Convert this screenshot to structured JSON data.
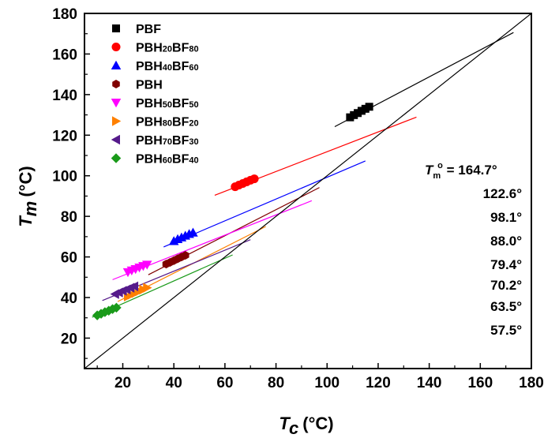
{
  "chart_data": {
    "type": "scatter",
    "title": "",
    "xlabel": {
      "symbol": "T",
      "sub": "c",
      "unit": "(°C)"
    },
    "ylabel": {
      "symbol": "T",
      "sub": "m",
      "unit": "(°C)"
    },
    "xlim": [
      5,
      180
    ],
    "ylim": [
      5,
      180
    ],
    "x_ticks": [
      20,
      40,
      60,
      80,
      100,
      120,
      140,
      160,
      180
    ],
    "y_ticks": [
      20,
      40,
      60,
      80,
      100,
      120,
      140,
      160,
      180
    ],
    "identity_line": {
      "from": [
        5,
        5
      ],
      "to": [
        180,
        180
      ],
      "color": "#000000"
    },
    "legend_position": "top-left",
    "series": [
      {
        "name": "PBF",
        "name_parts": [
          [
            "PBF",
            ""
          ]
        ],
        "marker": "square",
        "color": "#000000",
        "x": [
          109,
          110.5,
          112,
          113.5,
          115,
          116.5
        ],
        "y": [
          128.8,
          129.9,
          130.9,
          132.0,
          133.0,
          134.0
        ],
        "fit": {
          "from": [
            103,
            124.2
          ],
          "to": [
            173,
            170.6
          ]
        }
      },
      {
        "name": "PBH20BF80",
        "name_parts": [
          [
            "PBH",
            ""
          ],
          [
            "20",
            "sub"
          ],
          [
            "BF",
            ""
          ],
          [
            "80",
            "sub"
          ]
        ],
        "marker": "circle",
        "color": "#ff0000",
        "x": [
          64,
          65.5,
          67,
          68.5,
          70,
          71.5
        ],
        "y": [
          94.6,
          95.4,
          96.2,
          97.0,
          97.8,
          98.5
        ],
        "fit": {
          "from": [
            56,
            90.4
          ],
          "to": [
            135,
            128.9
          ]
        }
      },
      {
        "name": "PBH40BF60",
        "name_parts": [
          [
            "PBH",
            ""
          ],
          [
            "40",
            "sub"
          ],
          [
            "BF",
            ""
          ],
          [
            "60",
            "sub"
          ]
        ],
        "marker": "triangle-up",
        "color": "#0000ff",
        "x": [
          40,
          41.5,
          43,
          44.5,
          46,
          47.5
        ],
        "y": [
          67.8,
          68.8,
          69.6,
          70.5,
          71.3,
          72.0
        ],
        "fit": {
          "from": [
            36,
            64.9
          ],
          "to": [
            115,
            107.3
          ]
        }
      },
      {
        "name": "PBH",
        "name_parts": [
          [
            "PBH",
            ""
          ]
        ],
        "marker": "hexagon",
        "color": "#800000",
        "x": [
          37,
          38.5,
          40,
          41.5,
          43,
          44.5
        ],
        "y": [
          56.5,
          57.3,
          58.2,
          59.1,
          60.0,
          60.8
        ],
        "fit": {
          "from": [
            30,
            51.2
          ],
          "to": [
            97,
            94.2
          ]
        }
      },
      {
        "name": "PBH50BF50",
        "name_parts": [
          [
            "PBH",
            ""
          ],
          [
            "50",
            "sub"
          ],
          [
            "BF",
            ""
          ],
          [
            "50",
            "sub"
          ]
        ],
        "marker": "triangle-down",
        "color": "#ff00ff",
        "x": [
          22,
          23.5,
          25,
          26.5,
          28,
          29.5
        ],
        "y": [
          52.5,
          53.3,
          54.0,
          54.8,
          55.5,
          56.2
        ],
        "fit": {
          "from": [
            16,
            48.8
          ],
          "to": [
            94,
            87.7
          ]
        }
      },
      {
        "name": "PBH80BF20",
        "name_parts": [
          [
            "PBH",
            ""
          ],
          [
            "80",
            "sub"
          ],
          [
            "BF",
            ""
          ],
          [
            "20",
            "sub"
          ]
        ],
        "marker": "triangle-right",
        "color": "#ff8000",
        "x": [
          22,
          23.5,
          25,
          26.5,
          28,
          29.5
        ],
        "y": [
          40.5,
          41.4,
          42.2,
          43.1,
          43.9,
          44.8
        ],
        "fit": {
          "from": [
            18,
            38.0
          ],
          "to": [
            76,
            75.0
          ]
        }
      },
      {
        "name": "PBH70BF30",
        "name_parts": [
          [
            "PBH",
            ""
          ],
          [
            "70",
            "sub"
          ],
          [
            "BF",
            ""
          ],
          [
            "30",
            "sub"
          ]
        ],
        "marker": "triangle-left",
        "color": "#551a8b",
        "x": [
          17,
          18.5,
          20,
          21.5,
          23,
          24.5
        ],
        "y": [
          41.7,
          42.5,
          43.3,
          44.0,
          44.8,
          45.5
        ],
        "fit": {
          "from": [
            12,
            38.5
          ],
          "to": [
            70,
            68.5
          ]
        }
      },
      {
        "name": "PBH60BF40",
        "name_parts": [
          [
            "PBH",
            ""
          ],
          [
            "60",
            "sub"
          ],
          [
            "BF",
            ""
          ],
          [
            "40",
            "sub"
          ]
        ],
        "marker": "diamond",
        "color": "#1a9a1a",
        "x": [
          10,
          11.5,
          13,
          14.5,
          16,
          17.5
        ],
        "y": [
          31.2,
          32.0,
          32.8,
          33.5,
          34.3,
          35.0
        ],
        "fit": {
          "from": [
            8,
            30.3
          ],
          "to": [
            63,
            61.0
          ]
        }
      }
    ],
    "annotations": {
      "tm0_symbol": "T",
      "tm0_sub": "m",
      "tm0_sup": "o",
      "tm0_prefix": " = ",
      "values": [
        "164.7°",
        "122.6°",
        "98.1°",
        "88.0°",
        "79.4°",
        "70.2°",
        "63.5°",
        "57.5°"
      ]
    }
  }
}
